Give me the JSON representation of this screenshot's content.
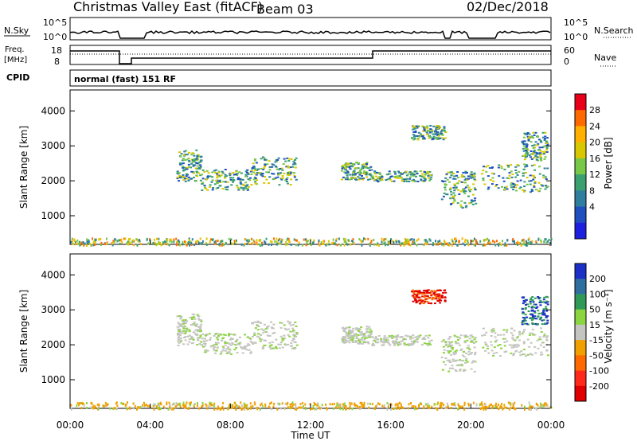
{
  "header": {
    "title": "Christmas Valley East (fitACF)",
    "beam": "Beam 03",
    "date": "02/Dec/2018"
  },
  "status_panels": {
    "nsky_label": "N.Sky",
    "nsearch_label": "N.Search",
    "nsky_ticks": [
      "10^5",
      "10^0"
    ],
    "nsearch_ticks": [
      "10^5",
      "10^0"
    ],
    "freq_label_top": "Freq.",
    "freq_label_unit": "[MHz]",
    "freq_ticks": [
      "18",
      "8"
    ],
    "nave_label": "Nave",
    "nave_ticks": [
      "60",
      "0"
    ],
    "cpid_label": "CPID",
    "cpid_text": "normal (fast) 151 RF"
  },
  "chart_data": [
    {
      "type": "heatmap",
      "name": "power",
      "ylabel": "Slant Range [km]",
      "yticks": [
        1000,
        2000,
        3000,
        4000
      ],
      "ylim": [
        180,
        4600
      ],
      "xlim": [
        0,
        24
      ],
      "colorbar": {
        "label": "Power [dB]",
        "ticks": [
          "28",
          "24",
          "20",
          "16",
          "12",
          "8",
          "4"
        ],
        "colors": [
          "#e8001a",
          "#ff6a00",
          "#ffb000",
          "#d9c800",
          "#78c848",
          "#3aa070",
          "#2e7f9e",
          "#2050c0",
          "#1e20e0"
        ]
      },
      "echo_regions": [
        {
          "t0": 5.3,
          "t1": 6.5,
          "r0": 2000,
          "r1": 2900
        },
        {
          "t0": 6.5,
          "t1": 9.0,
          "r0": 1750,
          "r1": 2350
        },
        {
          "t0": 9.0,
          "t1": 11.3,
          "r0": 1900,
          "r1": 2700
        },
        {
          "t0": 13.5,
          "t1": 15.0,
          "r0": 2050,
          "r1": 2550
        },
        {
          "t0": 15.0,
          "t1": 18.0,
          "r0": 2000,
          "r1": 2300
        },
        {
          "t0": 17.0,
          "t1": 18.7,
          "r0": 3200,
          "r1": 3600
        },
        {
          "t0": 18.5,
          "t1": 20.2,
          "r0": 1250,
          "r1": 2300
        },
        {
          "t0": 20.5,
          "t1": 23.8,
          "r0": 1700,
          "r1": 2500
        },
        {
          "t0": 22.5,
          "t1": 23.8,
          "r0": 2600,
          "r1": 3400
        },
        {
          "t0": 0.0,
          "t1": 24.0,
          "r0": 180,
          "r1": 380
        }
      ]
    },
    {
      "type": "heatmap",
      "name": "velocity",
      "ylabel": "Slant Range [km]",
      "yticks": [
        1000,
        2000,
        3000,
        4000
      ],
      "ylim": [
        180,
        4600
      ],
      "xlim": [
        0,
        24
      ],
      "xlabel": "Time UT",
      "xticks": [
        "00:00",
        "04:00",
        "08:00",
        "12:00",
        "16:00",
        "20:00",
        "00:00"
      ],
      "colorbar": {
        "label": "Velocity [m s⁻¹]",
        "ticks": [
          "200",
          "100",
          "50",
          "15",
          "-15",
          "-50",
          "-100",
          "-200"
        ],
        "colors": [
          "#1c30c8",
          "#2f6fa0",
          "#2f9a55",
          "#8bd640",
          "#c4c4c0",
          "#f0a000",
          "#ff6a00",
          "#ff2a1a",
          "#e00000"
        ]
      },
      "echo_regions": [
        {
          "t0": 5.3,
          "t1": 6.5,
          "r0": 2000,
          "r1": 2900
        },
        {
          "t0": 6.5,
          "t1": 9.0,
          "r0": 1750,
          "r1": 2350
        },
        {
          "t0": 9.0,
          "t1": 11.3,
          "r0": 1900,
          "r1": 2700
        },
        {
          "t0": 13.5,
          "t1": 15.0,
          "r0": 2050,
          "r1": 2550
        },
        {
          "t0": 15.0,
          "t1": 18.0,
          "r0": 2000,
          "r1": 2300
        },
        {
          "t0": 17.0,
          "t1": 18.7,
          "r0": 3200,
          "r1": 3600
        },
        {
          "t0": 18.5,
          "t1": 20.2,
          "r0": 1250,
          "r1": 2300
        },
        {
          "t0": 20.5,
          "t1": 23.8,
          "r0": 1700,
          "r1": 2500
        },
        {
          "t0": 22.5,
          "t1": 23.8,
          "r0": 2600,
          "r1": 3400
        },
        {
          "t0": 0.0,
          "t1": 24.0,
          "r0": 180,
          "r1": 380
        }
      ]
    }
  ]
}
